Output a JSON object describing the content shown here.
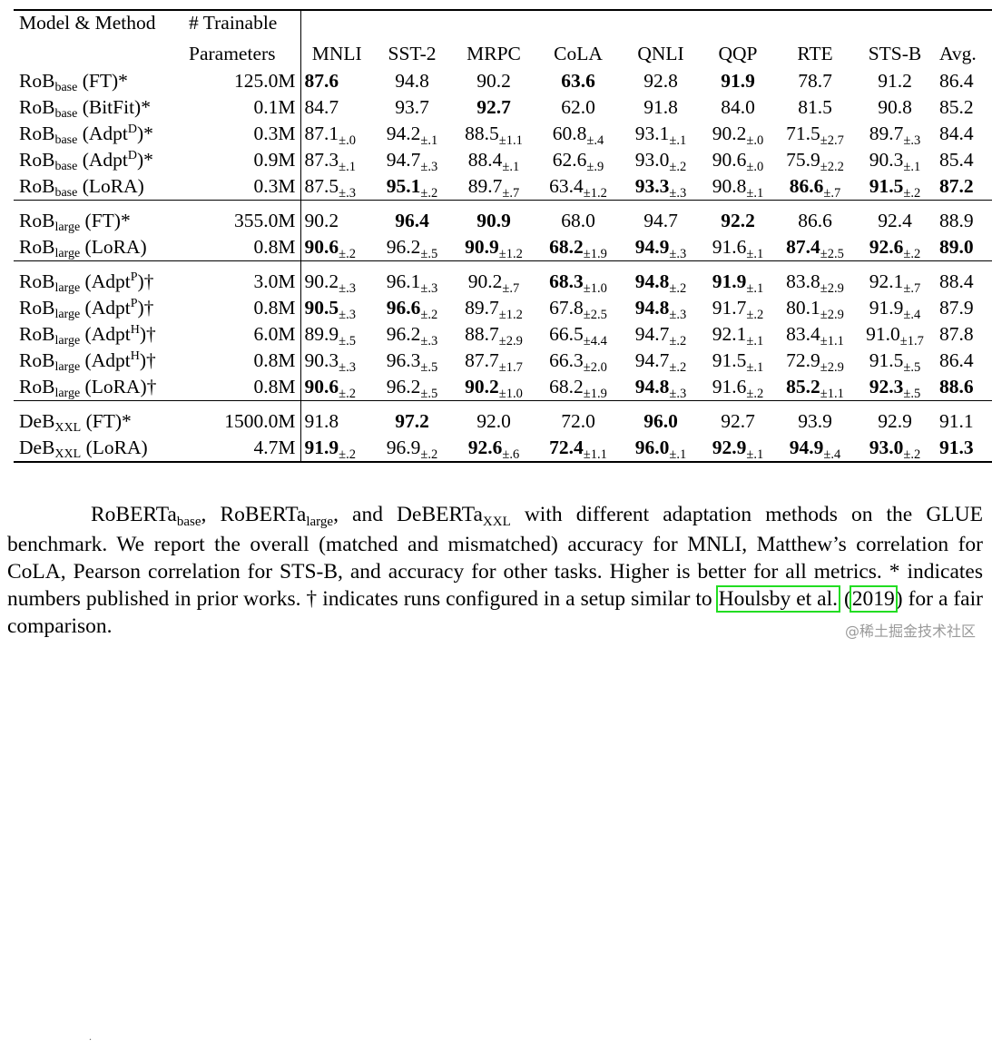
{
  "table": {
    "header_model": "Model & Method",
    "header_params_1": "# Trainable",
    "header_params_2": "Parameters",
    "columns": [
      "MNLI",
      "SST-2",
      "MRPC",
      "CoLA",
      "QNLI",
      "QQP",
      "RTE",
      "STS-B",
      "Avg."
    ],
    "groups": [
      {
        "rows": [
          {
            "m": "RoB",
            "s": "base",
            "method": "(FT)*",
            "p": "125.0M",
            "c": [
              {
                "v": "87.6",
                "b": true
              },
              {
                "v": "94.8"
              },
              {
                "v": "90.2"
              },
              {
                "v": "63.6",
                "b": true
              },
              {
                "v": "92.8"
              },
              {
                "v": "91.9",
                "b": true
              },
              {
                "v": "78.7"
              },
              {
                "v": "91.2"
              },
              {
                "v": "86.4"
              }
            ]
          },
          {
            "m": "RoB",
            "s": "base",
            "method": "(BitFit)*",
            "p": "0.1M",
            "c": [
              {
                "v": "84.7"
              },
              {
                "v": "93.7"
              },
              {
                "v": "92.7",
                "b": true
              },
              {
                "v": "62.0"
              },
              {
                "v": "91.8"
              },
              {
                "v": "84.0"
              },
              {
                "v": "81.5"
              },
              {
                "v": "90.8"
              },
              {
                "v": "85.2"
              }
            ]
          },
          {
            "m": "RoB",
            "s": "base",
            "method": "(Adpt",
            "sup": "D",
            "tail": ")*",
            "p": "0.3M",
            "c": [
              {
                "v": "87.1",
                "e": "±.0"
              },
              {
                "v": "94.2",
                "e": "±.1"
              },
              {
                "v": "88.5",
                "e": "±1.1"
              },
              {
                "v": "60.8",
                "e": "±.4"
              },
              {
                "v": "93.1",
                "e": "±.1"
              },
              {
                "v": "90.2",
                "e": "±.0"
              },
              {
                "v": "71.5",
                "e": "±2.7"
              },
              {
                "v": "89.7",
                "e": "±.3"
              },
              {
                "v": "84.4"
              }
            ]
          },
          {
            "m": "RoB",
            "s": "base",
            "method": "(Adpt",
            "sup": "D",
            "tail": ")*",
            "p": "0.9M",
            "c": [
              {
                "v": "87.3",
                "e": "±.1"
              },
              {
                "v": "94.7",
                "e": "±.3"
              },
              {
                "v": "88.4",
                "e": "±.1"
              },
              {
                "v": "62.6",
                "e": "±.9"
              },
              {
                "v": "93.0",
                "e": "±.2"
              },
              {
                "v": "90.6",
                "e": "±.0"
              },
              {
                "v": "75.9",
                "e": "±2.2"
              },
              {
                "v": "90.3",
                "e": "±.1"
              },
              {
                "v": "85.4"
              }
            ]
          },
          {
            "m": "RoB",
            "s": "base",
            "method": "(LoRA)",
            "p": "0.3M",
            "c": [
              {
                "v": "87.5",
                "e": "±.3"
              },
              {
                "v": "95.1",
                "e": "±.2",
                "b": true
              },
              {
                "v": "89.7",
                "e": "±.7"
              },
              {
                "v": "63.4",
                "e": "±1.2"
              },
              {
                "v": "93.3",
                "e": "±.3",
                "b": true
              },
              {
                "v": "90.8",
                "e": "±.1"
              },
              {
                "v": "86.6",
                "e": "±.7",
                "b": true
              },
              {
                "v": "91.5",
                "e": "±.2",
                "b": true
              },
              {
                "v": "87.2",
                "b": true
              }
            ]
          }
        ]
      },
      {
        "rows": [
          {
            "m": "RoB",
            "s": "large",
            "method": "(FT)*",
            "p": "355.0M",
            "c": [
              {
                "v": "90.2"
              },
              {
                "v": "96.4",
                "b": true
              },
              {
                "v": "90.9",
                "b": true
              },
              {
                "v": "68.0"
              },
              {
                "v": "94.7"
              },
              {
                "v": "92.2",
                "b": true
              },
              {
                "v": "86.6"
              },
              {
                "v": "92.4"
              },
              {
                "v": "88.9"
              }
            ]
          },
          {
            "m": "RoB",
            "s": "large",
            "method": "(LoRA)",
            "p": "0.8M",
            "c": [
              {
                "v": "90.6",
                "e": "±.2",
                "b": true
              },
              {
                "v": "96.2",
                "e": "±.5"
              },
              {
                "v": "90.9",
                "e": "±1.2",
                "b": true
              },
              {
                "v": "68.2",
                "e": "±1.9",
                "b": true
              },
              {
                "v": "94.9",
                "e": "±.3",
                "b": true
              },
              {
                "v": "91.6",
                "e": "±.1"
              },
              {
                "v": "87.4",
                "e": "±2.5",
                "b": true
              },
              {
                "v": "92.6",
                "e": "±.2",
                "b": true
              },
              {
                "v": "89.0",
                "b": true
              }
            ]
          }
        ]
      },
      {
        "rows": [
          {
            "m": "RoB",
            "s": "large",
            "method": "(Adpt",
            "sup": "P",
            "tail": ")†",
            "p": "3.0M",
            "c": [
              {
                "v": "90.2",
                "e": "±.3"
              },
              {
                "v": "96.1",
                "e": "±.3"
              },
              {
                "v": "90.2",
                "e": "±.7"
              },
              {
                "v": "68.3",
                "e": "±1.0",
                "b": true
              },
              {
                "v": "94.8",
                "e": "±.2",
                "b": true
              },
              {
                "v": "91.9",
                "e": "±.1",
                "b": true
              },
              {
                "v": "83.8",
                "e": "±2.9"
              },
              {
                "v": "92.1",
                "e": "±.7"
              },
              {
                "v": "88.4"
              }
            ]
          },
          {
            "m": "RoB",
            "s": "large",
            "method": "(Adpt",
            "sup": "P",
            "tail": ")†",
            "p": "0.8M",
            "c": [
              {
                "v": "90.5",
                "e": "±.3",
                "b": true
              },
              {
                "v": "96.6",
                "e": "±.2",
                "b": true
              },
              {
                "v": "89.7",
                "e": "±1.2"
              },
              {
                "v": "67.8",
                "e": "±2.5"
              },
              {
                "v": "94.8",
                "e": "±.3",
                "b": true
              },
              {
                "v": "91.7",
                "e": "±.2"
              },
              {
                "v": "80.1",
                "e": "±2.9"
              },
              {
                "v": "91.9",
                "e": "±.4"
              },
              {
                "v": "87.9"
              }
            ]
          },
          {
            "m": "RoB",
            "s": "large",
            "method": "(Adpt",
            "sup": "H",
            "tail": ")†",
            "p": "6.0M",
            "c": [
              {
                "v": "89.9",
                "e": "±.5"
              },
              {
                "v": "96.2",
                "e": "±.3"
              },
              {
                "v": "88.7",
                "e": "±2.9"
              },
              {
                "v": "66.5",
                "e": "±4.4"
              },
              {
                "v": "94.7",
                "e": "±.2"
              },
              {
                "v": "92.1",
                "e": "±.1"
              },
              {
                "v": "83.4",
                "e": "±1.1"
              },
              {
                "v": "91.0",
                "e": "±1.7"
              },
              {
                "v": "87.8"
              }
            ]
          },
          {
            "m": "RoB",
            "s": "large",
            "method": "(Adpt",
            "sup": "H",
            "tail": ")†",
            "p": "0.8M",
            "c": [
              {
                "v": "90.3",
                "e": "±.3"
              },
              {
                "v": "96.3",
                "e": "±.5"
              },
              {
                "v": "87.7",
                "e": "±1.7"
              },
              {
                "v": "66.3",
                "e": "±2.0"
              },
              {
                "v": "94.7",
                "e": "±.2"
              },
              {
                "v": "91.5",
                "e": "±.1"
              },
              {
                "v": "72.9",
                "e": "±2.9"
              },
              {
                "v": "91.5",
                "e": "±.5"
              },
              {
                "v": "86.4"
              }
            ]
          },
          {
            "m": "RoB",
            "s": "large",
            "method": "(LoRA)†",
            "p": "0.8M",
            "c": [
              {
                "v": "90.6",
                "e": "±.2",
                "b": true
              },
              {
                "v": "96.2",
                "e": "±.5"
              },
              {
                "v": "90.2",
                "e": "±1.0",
                "b": true
              },
              {
                "v": "68.2",
                "e": "±1.9"
              },
              {
                "v": "94.8",
                "e": "±.3",
                "b": true
              },
              {
                "v": "91.6",
                "e": "±.2"
              },
              {
                "v": "85.2",
                "e": "±1.1",
                "b": true
              },
              {
                "v": "92.3",
                "e": "±.5",
                "b": true
              },
              {
                "v": "88.6",
                "b": true
              }
            ]
          }
        ]
      },
      {
        "rows": [
          {
            "m": "DeB",
            "s": "XXL",
            "method": "(FT)*",
            "p": "1500.0M",
            "c": [
              {
                "v": "91.8"
              },
              {
                "v": "97.2",
                "b": true
              },
              {
                "v": "92.0"
              },
              {
                "v": "72.0"
              },
              {
                "v": "96.0",
                "b": true
              },
              {
                "v": "92.7"
              },
              {
                "v": "93.9"
              },
              {
                "v": "92.9"
              },
              {
                "v": "91.1"
              }
            ]
          },
          {
            "m": "DeB",
            "s": "XXL",
            "method": "(LoRA)",
            "p": "4.7M",
            "c": [
              {
                "v": "91.9",
                "e": "±.2",
                "b": true
              },
              {
                "v": "96.9",
                "e": "±.2"
              },
              {
                "v": "92.6",
                "e": "±.6",
                "b": true
              },
              {
                "v": "72.4",
                "e": "±1.1",
                "b": true
              },
              {
                "v": "96.0",
                "e": "±.1",
                "b": true
              },
              {
                "v": "92.9",
                "e": "±.1",
                "b": true
              },
              {
                "v": "94.9",
                "e": "±.4",
                "b": true
              },
              {
                "v": "93.0",
                "e": "±.2",
                "b": true
              },
              {
                "v": "91.3",
                "b": true
              }
            ]
          }
        ]
      }
    ]
  },
  "caption": {
    "mark": ".",
    "p1": "RoBERTa",
    "s1": "base",
    "p2": ", RoBERTa",
    "s2": "large",
    "p3": ", and DeBERTa",
    "s3": "XXL",
    "p4": " with different adaptation methods on the GLUE benchmark. We report the overall (matched and mismatched) accuracy for MNLI, Matthew’s correlation for CoLA, Pearson correlation for STS-B, and accuracy for other tasks. Higher is better for all metrics. * indicates numbers published in prior works. † indicates runs configured in a setup similar to ",
    "cite_author": "Houlsby et al.",
    "cite_open": " (",
    "cite_year": "2019",
    "cite_close": ")",
    "p5": " for a fair comparison."
  },
  "watermark": "@稀土掘金技术社区"
}
